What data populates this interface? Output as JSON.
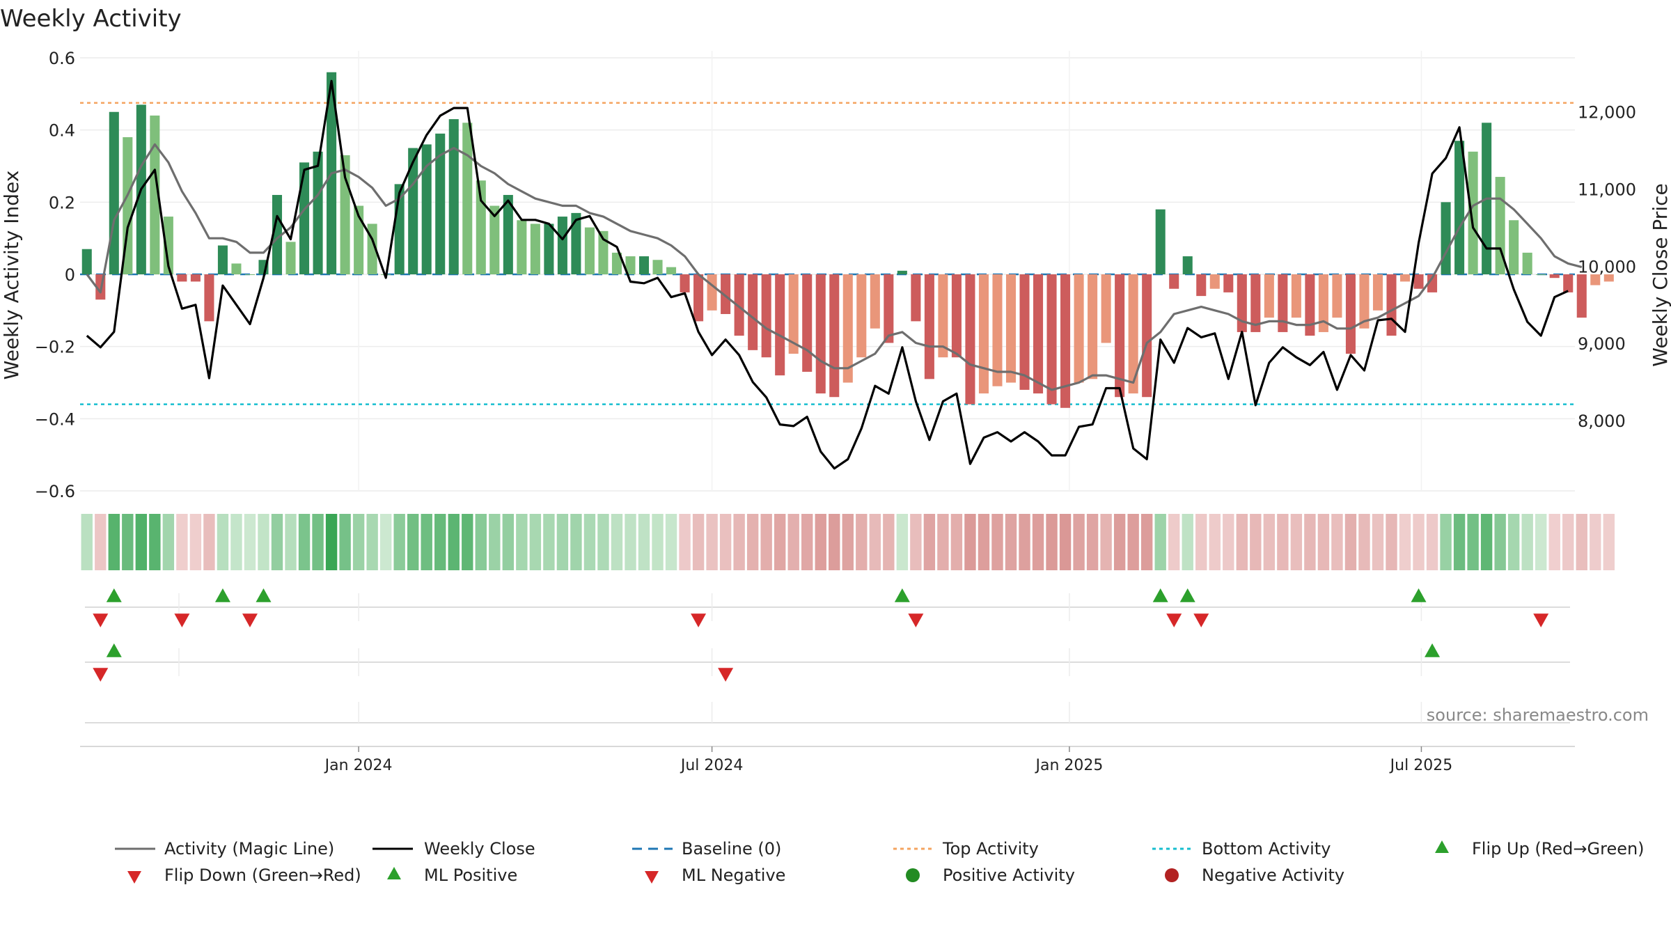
{
  "chart_data": {
    "type": "bar",
    "title": "Weekly Activity",
    "ylabel_left": "Weekly Activity Index",
    "ylabel_right": "Weekly Close Price",
    "y_left_ticks": [
      {
        "v": 0.6,
        "label": "0.6"
      },
      {
        "v": 0.4,
        "label": "0.4"
      },
      {
        "v": 0.2,
        "label": "0.2"
      },
      {
        "v": 0,
        "label": "0"
      },
      {
        "v": -0.2,
        "label": "−0.2"
      },
      {
        "v": -0.4,
        "label": "−0.4"
      },
      {
        "v": -0.6,
        "label": "−0.6"
      }
    ],
    "y_right_ticks": [
      {
        "v": 12000,
        "label": "12,000"
      },
      {
        "v": 11000,
        "label": "11,000"
      },
      {
        "v": 10000,
        "label": "10,000"
      },
      {
        "v": 9000,
        "label": "9,000"
      },
      {
        "v": 8000,
        "label": "8,000"
      }
    ],
    "ylim_left": [
      -0.6,
      0.6
    ],
    "ylim_right": [
      7090,
      12700
    ],
    "x_ticks": [
      {
        "i": 20,
        "label": "Jan 2024"
      },
      {
        "i": 46,
        "label": "Jul 2024"
      },
      {
        "i": 72.3,
        "label": "Jan 2025"
      },
      {
        "i": 98.2,
        "label": "Jul 2025"
      }
    ],
    "top_activity": 0.475,
    "bottom_activity": -0.36,
    "weeks": 110,
    "activity": [
      0.07,
      -0.07,
      0.45,
      0.38,
      0.47,
      0.44,
      0.16,
      -0.02,
      -0.02,
      -0.13,
      0.08,
      0.03,
      0.0,
      0.04,
      0.22,
      0.09,
      0.31,
      0.34,
      0.56,
      0.33,
      0.19,
      0.14,
      0.0,
      0.25,
      0.35,
      0.36,
      0.39,
      0.43,
      0.42,
      0.26,
      0.19,
      0.22,
      0.15,
      0.14,
      0.14,
      0.16,
      0.17,
      0.13,
      0.12,
      0.06,
      0.05,
      0.05,
      0.04,
      0.02,
      -0.05,
      -0.13,
      -0.1,
      -0.11,
      -0.17,
      -0.21,
      -0.23,
      -0.28,
      -0.22,
      -0.27,
      -0.33,
      -0.34,
      -0.3,
      -0.23,
      -0.15,
      -0.19,
      0.01,
      -0.13,
      -0.29,
      -0.23,
      -0.23,
      -0.36,
      -0.33,
      -0.31,
      -0.3,
      -0.32,
      -0.33,
      -0.36,
      -0.37,
      -0.3,
      -0.29,
      -0.19,
      -0.34,
      -0.33,
      -0.34,
      0.18,
      -0.04,
      0.05,
      -0.06,
      -0.04,
      -0.05,
      -0.16,
      -0.16,
      -0.12,
      -0.16,
      -0.12,
      -0.17,
      -0.16,
      -0.12,
      -0.22,
      -0.15,
      -0.1,
      -0.17,
      -0.02,
      -0.04,
      -0.05,
      0.2,
      0.37,
      0.34,
      0.42,
      0.27,
      0.15,
      0.06,
      0.0,
      -0.01,
      -0.05,
      -0.12,
      -0.03,
      -0.02
    ],
    "magic_line": [
      0.0,
      -0.05,
      0.15,
      0.22,
      0.3,
      0.36,
      0.31,
      0.23,
      0.17,
      0.1,
      0.1,
      0.09,
      0.06,
      0.06,
      0.1,
      0.13,
      0.18,
      0.22,
      0.28,
      0.29,
      0.27,
      0.24,
      0.19,
      0.21,
      0.25,
      0.3,
      0.33,
      0.35,
      0.33,
      0.3,
      0.28,
      0.25,
      0.23,
      0.21,
      0.2,
      0.19,
      0.19,
      0.17,
      0.16,
      0.14,
      0.12,
      0.11,
      0.1,
      0.08,
      0.05,
      0.0,
      -0.03,
      -0.06,
      -0.09,
      -0.12,
      -0.15,
      -0.17,
      -0.19,
      -0.21,
      -0.24,
      -0.26,
      -0.26,
      -0.24,
      -0.22,
      -0.17,
      -0.16,
      -0.19,
      -0.2,
      -0.2,
      -0.22,
      -0.25,
      -0.26,
      -0.27,
      -0.27,
      -0.28,
      -0.3,
      -0.32,
      -0.31,
      -0.3,
      -0.28,
      -0.28,
      -0.29,
      -0.3,
      -0.19,
      -0.16,
      -0.11,
      -0.1,
      -0.09,
      -0.1,
      -0.11,
      -0.13,
      -0.14,
      -0.13,
      -0.13,
      -0.14,
      -0.14,
      -0.13,
      -0.15,
      -0.15,
      -0.13,
      -0.12,
      -0.1,
      -0.08,
      -0.06,
      -0.01,
      0.06,
      0.13,
      0.19,
      0.21,
      0.21,
      0.18,
      0.14,
      0.1,
      0.05,
      0.03,
      0.02
    ],
    "weekly_close": [
      9100,
      8950,
      9150,
      10500,
      11000,
      11250,
      10000,
      9450,
      9500,
      8550,
      9750,
      9500,
      9250,
      9850,
      10650,
      10350,
      11250,
      11300,
      12400,
      11150,
      10650,
      10350,
      9850,
      10950,
      11350,
      11700,
      11950,
      12050,
      12050,
      10850,
      10650,
      10850,
      10600,
      10600,
      10550,
      10350,
      10600,
      10650,
      10350,
      10250,
      9800,
      9780,
      9850,
      9600,
      9650,
      9150,
      8850,
      9050,
      8850,
      8500,
      8300,
      7950,
      7930,
      8050,
      7600,
      7380,
      7500,
      7900,
      8450,
      8350,
      8950,
      8250,
      7750,
      8250,
      8350,
      7440,
      7780,
      7850,
      7730,
      7850,
      7730,
      7550,
      7550,
      7920,
      7950,
      8420,
      8420,
      7640,
      7500,
      9050,
      8750,
      9200,
      9080,
      9130,
      8540,
      9150,
      8200,
      8750,
      8950,
      8820,
      8720,
      8890,
      8400,
      8850,
      8650,
      9300,
      9320,
      9150,
      10300,
      11200,
      11400,
      11800,
      10500,
      10230,
      10230,
      9700,
      9280,
      9100,
      9600,
      9680
    ],
    "ticker_strip": [
      0.07,
      -0.07,
      0.45,
      0.38,
      0.47,
      0.44,
      0.16,
      -0.02,
      -0.02,
      -0.13,
      0.08,
      0.03,
      0.0,
      0.04,
      0.22,
      0.09,
      0.31,
      0.34,
      0.56,
      0.33,
      0.19,
      0.14,
      0.0,
      0.25,
      0.35,
      0.36,
      0.39,
      0.43,
      0.42,
      0.26,
      0.19,
      0.22,
      0.15,
      0.14,
      0.14,
      0.16,
      0.17,
      0.13,
      0.12,
      0.06,
      0.05,
      0.05,
      0.04,
      0.02,
      -0.05,
      -0.13,
      -0.1,
      -0.11,
      -0.17,
      -0.21,
      -0.23,
      -0.28,
      -0.22,
      -0.27,
      -0.33,
      -0.34,
      -0.3,
      -0.23,
      -0.15,
      -0.19,
      0.01,
      -0.13,
      -0.29,
      -0.23,
      -0.23,
      -0.36,
      -0.33,
      -0.31,
      -0.3,
      -0.32,
      -0.33,
      -0.36,
      -0.37,
      -0.3,
      -0.29,
      -0.19,
      -0.34,
      -0.33,
      -0.34,
      0.18,
      -0.04,
      0.05,
      -0.06,
      -0.04,
      -0.05,
      -0.16,
      -0.16,
      -0.12,
      -0.16,
      -0.12,
      -0.17,
      -0.16,
      -0.12,
      -0.22,
      -0.15,
      -0.1,
      -0.17,
      -0.02,
      -0.04,
      -0.05,
      0.2,
      0.37,
      0.34,
      0.42,
      0.27,
      0.15,
      0.06,
      0.0,
      -0.01,
      -0.05,
      -0.12,
      -0.03,
      -0.02
    ],
    "flip_up": [
      2,
      10,
      13,
      60,
      79,
      81,
      98
    ],
    "flip_down": [
      1,
      7,
      12,
      45,
      61,
      80,
      82,
      107
    ],
    "ml_positive": [
      2,
      99
    ],
    "ml_negative": [
      1,
      47
    ],
    "source": "source: sharemaestro.com",
    "legend": [
      {
        "key": "magic",
        "label": "Activity (Magic Line)"
      },
      {
        "key": "close",
        "label": "Weekly Close"
      },
      {
        "key": "baseline",
        "label": "Baseline (0)"
      },
      {
        "key": "top",
        "label": "Top Activity"
      },
      {
        "key": "bottom",
        "label": "Bottom Activity"
      },
      {
        "key": "flipup",
        "label": "Flip Up (Red→Green)"
      },
      {
        "key": "flipdown",
        "label": "Flip Down (Green→Red)"
      },
      {
        "key": "mlpos",
        "label": "ML Positive"
      },
      {
        "key": "mlneg",
        "label": "ML Negative"
      },
      {
        "key": "posact",
        "label": "Positive Activity"
      },
      {
        "key": "negact",
        "label": "Negative Activity"
      }
    ],
    "colors": {
      "pos_strong": "#2e8b57",
      "pos_light": "#7fbf7b",
      "neg_strong": "#cd5c5c",
      "neg_light": "#e9967a",
      "magic": "#6e6e6e",
      "close": "#000000",
      "baseline": "#1f77b4",
      "top": "#f4a460",
      "bottom": "#17becf",
      "up_marker": "#2ca02c",
      "down_marker": "#d62728",
      "pos_dot": "#228b22",
      "neg_dot": "#b22222"
    }
  }
}
